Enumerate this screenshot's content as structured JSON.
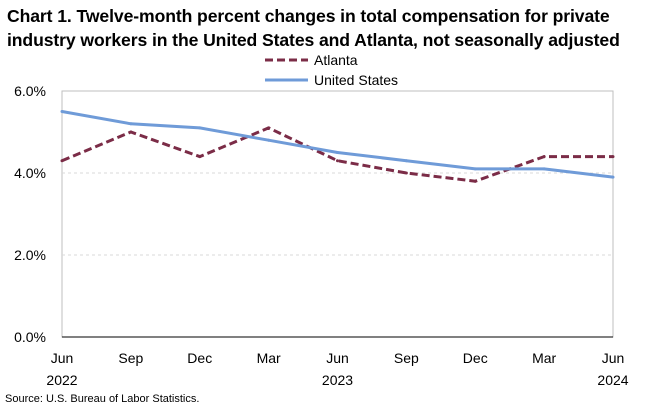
{
  "chart_data": {
    "type": "line",
    "title": "Chart 1. Twelve-month percent changes in total compensation for private industry workers in the United States and Atlanta, not seasonally adjusted",
    "categories": [
      "Jun",
      "Sep",
      "Dec",
      "Mar",
      "Jun",
      "Sep",
      "Dec",
      "Mar",
      "Jun"
    ],
    "year_labels": [
      {
        "index": 0,
        "label": "2022"
      },
      {
        "index": 4,
        "label": "2023"
      },
      {
        "index": 8,
        "label": "2024"
      }
    ],
    "ylim": [
      0,
      6
    ],
    "yticks": [
      {
        "value": 0,
        "label": "0.0%"
      },
      {
        "value": 2,
        "label": "2.0%"
      },
      {
        "value": 4,
        "label": "4.0%"
      },
      {
        "value": 6,
        "label": "6.0%"
      }
    ],
    "xlabel": "",
    "ylabel": "",
    "legend_position": "top-center",
    "series": [
      {
        "name": "Atlanta",
        "color": "#7B2C47",
        "style": "dashed",
        "values": [
          4.3,
          5.0,
          4.4,
          5.1,
          4.3,
          4.0,
          3.8,
          4.4,
          4.4
        ]
      },
      {
        "name": "United States",
        "color": "#6F9BD8",
        "style": "solid",
        "values": [
          5.5,
          5.2,
          5.1,
          4.8,
          4.5,
          4.3,
          4.1,
          4.1,
          3.9
        ]
      }
    ],
    "source": "Source: U.S. Bureau of Labor Statistics."
  }
}
